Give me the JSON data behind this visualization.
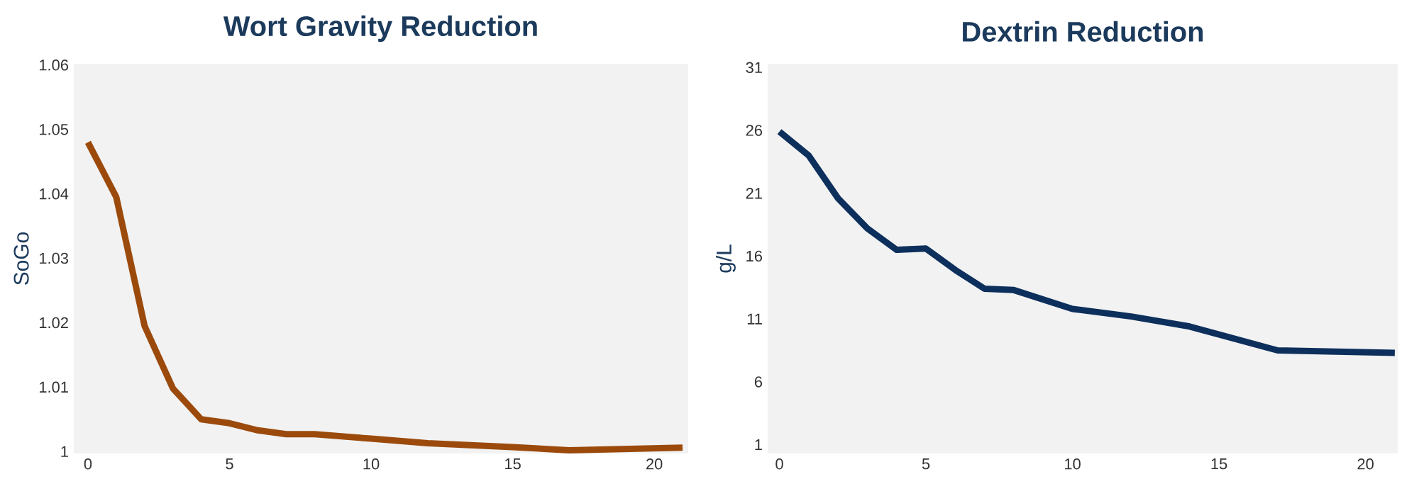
{
  "chart_data": [
    {
      "type": "line",
      "title": "Wort Gravity Reduction",
      "ylabel": "SoGo",
      "x": [
        0,
        1,
        2,
        3,
        4,
        5,
        6,
        7,
        8,
        10,
        12,
        15,
        17,
        21
      ],
      "series": [
        {
          "color": "#9b4a0c",
          "values": [
            1.048,
            1.0395,
            1.0195,
            1.0098,
            1.005,
            1.0044,
            1.0033,
            1.0027,
            1.0027,
            1.002,
            1.0013,
            1.0007,
            1.0002,
            1.0006
          ]
        }
      ],
      "xlim": [
        -0.5,
        21.2
      ],
      "ylim": [
        0.9997,
        1.0602
      ],
      "xticks": [
        0,
        5,
        10,
        15,
        20
      ],
      "yticks": [
        1,
        1.01,
        1.02,
        1.03,
        1.04,
        1.05,
        1.06
      ],
      "grid": false,
      "marker": "none",
      "line_style": "solid"
    },
    {
      "type": "line",
      "title": "Dextrin Reduction",
      "ylabel": "g/L",
      "x": [
        0,
        1,
        2,
        3,
        4,
        5,
        6,
        7,
        8,
        10,
        12,
        14,
        17,
        21
      ],
      "series": [
        {
          "color": "#0d2f5c",
          "values": [
            25.9,
            24.0,
            20.6,
            18.2,
            16.5,
            16.6,
            14.9,
            13.4,
            13.3,
            11.8,
            11.2,
            10.4,
            8.5,
            8.3
          ]
        }
      ],
      "xlim": [
        -0.4,
        21.1
      ],
      "ylim": [
        0.3,
        31.3
      ],
      "xticks": [
        0,
        5,
        10,
        15,
        20
      ],
      "yticks": [
        1,
        6,
        11,
        16,
        21,
        26,
        31
      ],
      "grid": false,
      "marker": "none",
      "line_style": "solid"
    }
  ]
}
